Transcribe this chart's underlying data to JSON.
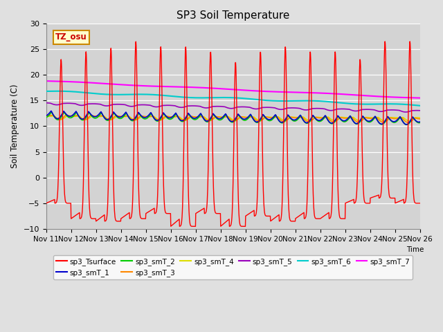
{
  "title": "SP3 Soil Temperature",
  "ylabel": "Soil Temperature (C)",
  "xlabel": "Time",
  "tz_label": "TZ_osu",
  "ylim": [
    -10,
    30
  ],
  "background_color": "#e8e8e8",
  "plot_bg_color": "#d8d8d8",
  "series_colors": {
    "sp3_Tsurface": "#ff0000",
    "sp3_smT_1": "#0000cc",
    "sp3_smT_2": "#00cc00",
    "sp3_smT_3": "#ff8800",
    "sp3_smT_4": "#dddd00",
    "sp3_smT_5": "#9900bb",
    "sp3_smT_6": "#00cccc",
    "sp3_smT_7": "#ff00ff"
  },
  "xtick_labels": [
    "Nov 11",
    "Nov 12",
    "Nov 13",
    "Nov 14",
    "Nov 15",
    "Nov 16",
    "Nov 17",
    "Nov 18",
    "Nov 19",
    "Nov 20",
    "Nov 21",
    "Nov 22",
    "Nov 23",
    "Nov 24",
    "Nov 25",
    "Nov 26"
  ],
  "n_days": 15,
  "n_points": 1500
}
